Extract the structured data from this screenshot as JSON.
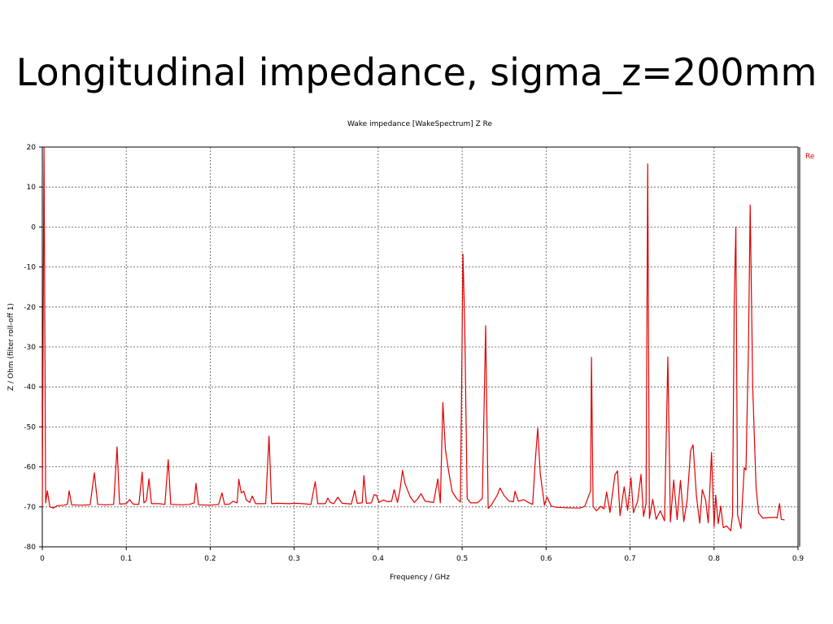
{
  "slide": {
    "title": "Longitudinal impedance, sigma_z=200mm"
  },
  "chart_data": {
    "type": "line",
    "title": "Wake impedance [WakeSpectrum] Z Re",
    "xlabel": "Frequency / GHz",
    "ylabel": "Z / Ohm (filter roll-off 1)",
    "xlim": [
      0,
      0.9
    ],
    "ylim": [
      -80,
      20
    ],
    "x_ticks": [
      "0",
      "0.1",
      "0.2",
      "0.3",
      "0.4",
      "0.5",
      "0.6",
      "0.7",
      "0.8",
      "0.9"
    ],
    "y_ticks": [
      "20",
      "10",
      "0",
      "-10",
      "-20",
      "-30",
      "-40",
      "-50",
      "-60",
      "-70",
      "-80"
    ],
    "grid": true,
    "legend_position": "top-right",
    "series": [
      {
        "name": "Re",
        "color": "#e00000",
        "points": [
          [
            0.0,
            -70.0
          ],
          [
            0.002,
            20.0
          ],
          [
            0.004,
            -69.0
          ],
          [
            0.006,
            -66.0
          ],
          [
            0.009,
            -70.0
          ],
          [
            0.013,
            -70.3
          ],
          [
            0.018,
            -69.7
          ],
          [
            0.026,
            -69.6
          ],
          [
            0.03,
            -69.3
          ],
          [
            0.032,
            -66.0
          ],
          [
            0.035,
            -69.5
          ],
          [
            0.045,
            -69.6
          ],
          [
            0.057,
            -69.5
          ],
          [
            0.062,
            -61.5
          ],
          [
            0.066,
            -69.4
          ],
          [
            0.076,
            -69.5
          ],
          [
            0.085,
            -69.4
          ],
          [
            0.089,
            -55.0
          ],
          [
            0.092,
            -69.3
          ],
          [
            0.1,
            -69.2
          ],
          [
            0.104,
            -68.2
          ],
          [
            0.108,
            -69.3
          ],
          [
            0.115,
            -69.4
          ],
          [
            0.119,
            -61.3
          ],
          [
            0.121,
            -69.0
          ],
          [
            0.124,
            -68.4
          ],
          [
            0.127,
            -63.0
          ],
          [
            0.13,
            -69.2
          ],
          [
            0.139,
            -69.2
          ],
          [
            0.146,
            -69.4
          ],
          [
            0.15,
            -58.2
          ],
          [
            0.153,
            -69.4
          ],
          [
            0.166,
            -69.5
          ],
          [
            0.175,
            -69.4
          ],
          [
            0.181,
            -69.0
          ],
          [
            0.183,
            -64.1
          ],
          [
            0.186,
            -69.5
          ],
          [
            0.2,
            -69.6
          ],
          [
            0.21,
            -69.4
          ],
          [
            0.214,
            -66.5
          ],
          [
            0.217,
            -69.4
          ],
          [
            0.223,
            -69.3
          ],
          [
            0.227,
            -68.6
          ],
          [
            0.232,
            -69.0
          ],
          [
            0.234,
            -63.1
          ],
          [
            0.237,
            -66.5
          ],
          [
            0.24,
            -66.1
          ],
          [
            0.243,
            -68.3
          ],
          [
            0.247,
            -68.9
          ],
          [
            0.25,
            -67.3
          ],
          [
            0.254,
            -69.2
          ],
          [
            0.266,
            -69.2
          ],
          [
            0.27,
            -52.3
          ],
          [
            0.273,
            -69.2
          ],
          [
            0.28,
            -69.1
          ],
          [
            0.293,
            -69.2
          ],
          [
            0.302,
            -69.1
          ],
          [
            0.31,
            -69.2
          ],
          [
            0.32,
            -69.4
          ],
          [
            0.325,
            -63.7
          ],
          [
            0.328,
            -69.2
          ],
          [
            0.337,
            -69.2
          ],
          [
            0.34,
            -67.8
          ],
          [
            0.343,
            -68.9
          ],
          [
            0.347,
            -69.2
          ],
          [
            0.352,
            -67.6
          ],
          [
            0.357,
            -69.1
          ],
          [
            0.368,
            -69.3
          ],
          [
            0.372,
            -65.9
          ],
          [
            0.375,
            -69.1
          ],
          [
            0.381,
            -69.0
          ],
          [
            0.383,
            -62.2
          ],
          [
            0.386,
            -69.1
          ],
          [
            0.392,
            -69.0
          ],
          [
            0.395,
            -67.0
          ],
          [
            0.398,
            -67.1
          ],
          [
            0.401,
            -68.9
          ],
          [
            0.406,
            -68.3
          ],
          [
            0.411,
            -68.7
          ],
          [
            0.416,
            -68.6
          ],
          [
            0.419,
            -65.7
          ],
          [
            0.423,
            -68.9
          ],
          [
            0.426,
            -65.8
          ],
          [
            0.429,
            -60.9
          ],
          [
            0.432,
            -64.2
          ],
          [
            0.438,
            -67.4
          ],
          [
            0.443,
            -68.9
          ],
          [
            0.447,
            -68.0
          ],
          [
            0.451,
            -66.7
          ],
          [
            0.456,
            -68.6
          ],
          [
            0.466,
            -68.9
          ],
          [
            0.471,
            -63.0
          ],
          [
            0.474,
            -69.0
          ],
          [
            0.477,
            -43.9
          ],
          [
            0.48,
            -55.6
          ],
          [
            0.484,
            -61.2
          ],
          [
            0.488,
            -66.1
          ],
          [
            0.493,
            -67.8
          ],
          [
            0.498,
            -68.8
          ],
          [
            0.501,
            -6.8
          ],
          [
            0.503,
            -23.4
          ],
          [
            0.506,
            -67.9
          ],
          [
            0.51,
            -69.0
          ],
          [
            0.518,
            -69.0
          ],
          [
            0.524,
            -67.9
          ],
          [
            0.528,
            -24.7
          ],
          [
            0.531,
            -70.4
          ],
          [
            0.535,
            -69.5
          ],
          [
            0.542,
            -67.0
          ],
          [
            0.545,
            -65.3
          ],
          [
            0.55,
            -67.2
          ],
          [
            0.556,
            -68.6
          ],
          [
            0.561,
            -68.7
          ],
          [
            0.563,
            -66.1
          ],
          [
            0.567,
            -68.6
          ],
          [
            0.573,
            -68.2
          ],
          [
            0.578,
            -68.8
          ],
          [
            0.584,
            -69.4
          ],
          [
            0.587,
            -58.9
          ],
          [
            0.59,
            -50.3
          ],
          [
            0.593,
            -61.6
          ],
          [
            0.598,
            -69.6
          ],
          [
            0.601,
            -67.5
          ],
          [
            0.606,
            -69.8
          ],
          [
            0.612,
            -70.1
          ],
          [
            0.622,
            -70.2
          ],
          [
            0.64,
            -70.3
          ],
          [
            0.646,
            -69.9
          ],
          [
            0.653,
            -66.0
          ],
          [
            0.654,
            -32.6
          ],
          [
            0.656,
            -69.9
          ],
          [
            0.66,
            -71.0
          ],
          [
            0.665,
            -69.9
          ],
          [
            0.669,
            -70.5
          ],
          [
            0.672,
            -66.3
          ],
          [
            0.676,
            -71.4
          ],
          [
            0.682,
            -62.0
          ],
          [
            0.685,
            -61.0
          ],
          [
            0.688,
            -72.2
          ],
          [
            0.693,
            -65.0
          ],
          [
            0.697,
            -70.9
          ],
          [
            0.701,
            -62.7
          ],
          [
            0.704,
            -71.5
          ],
          [
            0.709,
            -68.6
          ],
          [
            0.713,
            -61.9
          ],
          [
            0.716,
            -72.4
          ],
          [
            0.719,
            -69.2
          ],
          [
            0.721,
            15.8
          ],
          [
            0.723,
            -72.9
          ],
          [
            0.727,
            -68.1
          ],
          [
            0.731,
            -73.1
          ],
          [
            0.736,
            -71.0
          ],
          [
            0.741,
            -73.5
          ],
          [
            0.745,
            -32.5
          ],
          [
            0.748,
            -73.8
          ],
          [
            0.752,
            -63.3
          ],
          [
            0.756,
            -73.2
          ],
          [
            0.76,
            -63.4
          ],
          [
            0.764,
            -73.7
          ],
          [
            0.768,
            -68.3
          ],
          [
            0.772,
            -56.0
          ],
          [
            0.775,
            -54.5
          ],
          [
            0.779,
            -67.2
          ],
          [
            0.783,
            -74.1
          ],
          [
            0.786,
            -65.7
          ],
          [
            0.79,
            -68.4
          ],
          [
            0.793,
            -74.0
          ],
          [
            0.797,
            -56.4
          ],
          [
            0.8,
            -75.0
          ],
          [
            0.802,
            -67.1
          ],
          [
            0.805,
            -74.2
          ],
          [
            0.808,
            -69.8
          ],
          [
            0.811,
            -75.2
          ],
          [
            0.815,
            -74.8
          ],
          [
            0.82,
            -76.0
          ],
          [
            0.822,
            -72.0
          ],
          [
            0.824,
            -18.4
          ],
          [
            0.826,
            0.0
          ],
          [
            0.828,
            -72.0
          ],
          [
            0.832,
            -75.4
          ],
          [
            0.836,
            -60.2
          ],
          [
            0.838,
            -60.8
          ],
          [
            0.841,
            -30.0
          ],
          [
            0.843,
            5.5
          ],
          [
            0.846,
            -40.0
          ],
          [
            0.85,
            -65.0
          ],
          [
            0.853,
            -71.5
          ],
          [
            0.858,
            -72.8
          ],
          [
            0.864,
            -72.7
          ],
          [
            0.872,
            -72.6
          ],
          [
            0.875,
            -72.8
          ],
          [
            0.878,
            -69.2
          ],
          [
            0.88,
            -73.1
          ],
          [
            0.884,
            -73.3
          ]
        ]
      }
    ]
  }
}
